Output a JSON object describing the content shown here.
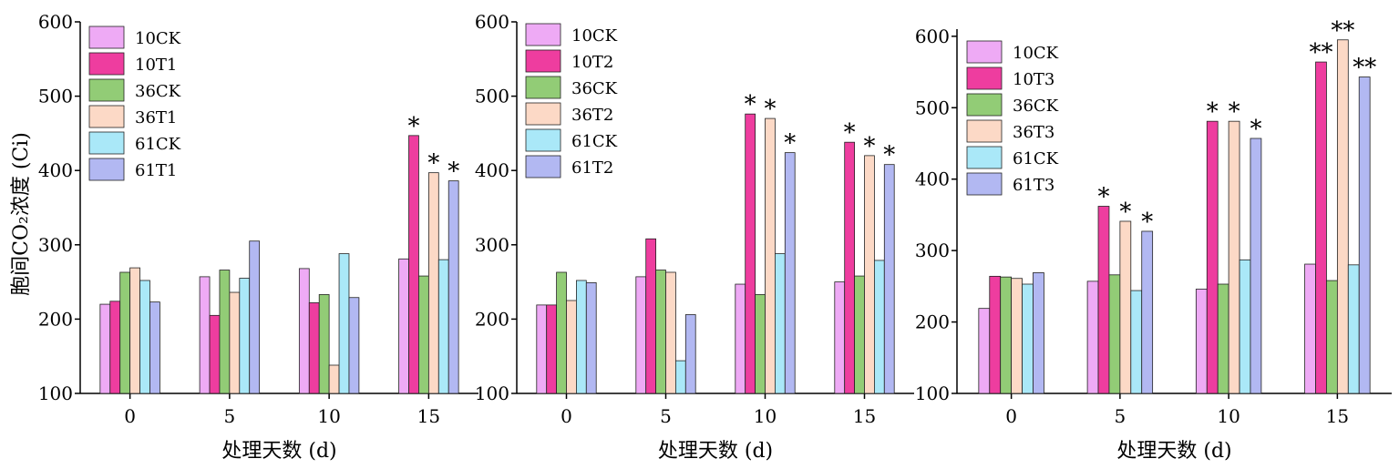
{
  "figure": {
    "ylabel": "胞间CO₂浓度 (Ci)"
  },
  "chart_data": [
    {
      "type": "bar",
      "panel": "T1",
      "xlabel": "处理天数 (d)",
      "ylim": [
        100,
        600
      ],
      "yticks": [
        100,
        200,
        300,
        400,
        500,
        600
      ],
      "categories": [
        "0",
        "5",
        "10",
        "15"
      ],
      "legend_position": "top-left",
      "series": [
        {
          "name": "10CK",
          "color": "#eeaaf5",
          "values": [
            220,
            257,
            268,
            281
          ],
          "marks": [
            "",
            "",
            "",
            ""
          ]
        },
        {
          "name": "10T1",
          "color": "#ee3d9f",
          "values": [
            224,
            205,
            222,
            447
          ],
          "marks": [
            "",
            "",
            "",
            "*"
          ]
        },
        {
          "name": "36CK",
          "color": "#92cc76",
          "values": [
            263,
            266,
            233,
            258
          ],
          "marks": [
            "",
            "",
            "",
            ""
          ]
        },
        {
          "name": "36T1",
          "color": "#fcd9c6",
          "values": [
            269,
            236,
            138,
            397
          ],
          "marks": [
            "",
            "",
            "",
            "*"
          ]
        },
        {
          "name": "61CK",
          "color": "#aae8f8",
          "values": [
            252,
            255,
            288,
            280
          ],
          "marks": [
            "",
            "",
            "",
            ""
          ]
        },
        {
          "name": "61T1",
          "color": "#b2b8f2",
          "values": [
            223,
            305,
            229,
            386
          ],
          "marks": [
            "",
            "",
            "",
            "*"
          ]
        }
      ]
    },
    {
      "type": "bar",
      "panel": "T2",
      "xlabel": "处理天数 (d)",
      "ylim": [
        100,
        600
      ],
      "yticks": [
        100,
        200,
        300,
        400,
        500,
        600
      ],
      "categories": [
        "0",
        "5",
        "10",
        "15"
      ],
      "legend_position": "top-left",
      "series": [
        {
          "name": "10CK",
          "color": "#eeaaf5",
          "values": [
            219,
            257,
            247,
            250
          ],
          "marks": [
            "",
            "",
            "",
            ""
          ]
        },
        {
          "name": "10T2",
          "color": "#ee3d9f",
          "values": [
            219,
            308,
            476,
            438
          ],
          "marks": [
            "",
            "",
            "*",
            "*"
          ]
        },
        {
          "name": "36CK",
          "color": "#92cc76",
          "values": [
            263,
            266,
            233,
            258
          ],
          "marks": [
            "",
            "",
            "",
            ""
          ]
        },
        {
          "name": "36T2",
          "color": "#fcd9c6",
          "values": [
            225,
            263,
            470,
            420
          ],
          "marks": [
            "",
            "",
            "*",
            "*"
          ]
        },
        {
          "name": "61CK",
          "color": "#aae8f8",
          "values": [
            252,
            144,
            288,
            279
          ],
          "marks": [
            "",
            "",
            "",
            ""
          ]
        },
        {
          "name": "61T2",
          "color": "#b2b8f2",
          "values": [
            249,
            206,
            424,
            408
          ],
          "marks": [
            "",
            "",
            "*",
            "*"
          ]
        }
      ]
    },
    {
      "type": "bar",
      "panel": "T3",
      "xlabel": "处理天数 (d)",
      "ylim": [
        100,
        610
      ],
      "yticks": [
        100,
        200,
        300,
        400,
        500,
        600
      ],
      "categories": [
        "0",
        "5",
        "10",
        "15"
      ],
      "legend_position": "top-left",
      "series": [
        {
          "name": "10CK",
          "color": "#eeaaf5",
          "values": [
            219,
            257,
            246,
            281
          ],
          "marks": [
            "",
            "",
            "",
            ""
          ]
        },
        {
          "name": "10T3",
          "color": "#ee3d9f",
          "values": [
            264,
            362,
            481,
            564
          ],
          "marks": [
            "",
            "*",
            "*",
            "**"
          ]
        },
        {
          "name": "36CK",
          "color": "#92cc76",
          "values": [
            263,
            266,
            253,
            258
          ],
          "marks": [
            "",
            "",
            "",
            ""
          ]
        },
        {
          "name": "36T3",
          "color": "#fcd9c6",
          "values": [
            261,
            341,
            481,
            595
          ],
          "marks": [
            "",
            "*",
            "*",
            "**"
          ]
        },
        {
          "name": "61CK",
          "color": "#aae8f8",
          "values": [
            253,
            244,
            287,
            280
          ],
          "marks": [
            "",
            "",
            "",
            ""
          ]
        },
        {
          "name": "61T3",
          "color": "#b2b8f2",
          "values": [
            269,
            327,
            457,
            543
          ],
          "marks": [
            "",
            "*",
            "*",
            "**"
          ]
        }
      ]
    }
  ]
}
